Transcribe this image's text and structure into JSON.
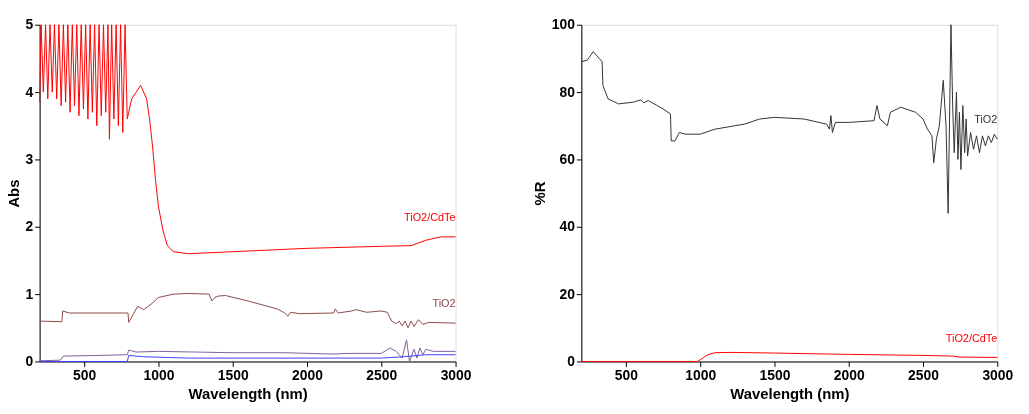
{
  "chart_data": [
    {
      "type": "line",
      "xlabel": "Wavelength (nm)",
      "ylabel": "Abs",
      "xlim": [
        200,
        3000
      ],
      "ylim": [
        0,
        5
      ],
      "xticks": [
        500,
        1000,
        1500,
        2000,
        2500,
        3000
      ],
      "yticks": [
        0,
        1,
        2,
        3,
        4,
        5
      ],
      "grid": false,
      "series": [
        {
          "name": "TiO2/CdTe",
          "color": "#ff0000",
          "x": [
            200,
            210,
            225,
            240,
            255,
            270,
            285,
            300,
            315,
            330,
            345,
            360,
            375,
            390,
            405,
            420,
            435,
            450,
            465,
            480,
            495,
            510,
            525,
            540,
            555,
            570,
            585,
            600,
            615,
            630,
            645,
            660,
            670,
            685,
            700,
            715,
            730,
            745,
            760,
            775,
            790,
            800,
            820,
            850,
            880,
            900,
            920,
            940,
            960,
            980,
            1000,
            1030,
            1060,
            1100,
            1200,
            1500,
            2000,
            2500,
            2700,
            2800,
            2900,
            3000
          ],
          "values": [
            3.85,
            5,
            4.0,
            5,
            3.9,
            5,
            4.0,
            5,
            3.9,
            5,
            3.8,
            5,
            3.85,
            5,
            3.7,
            5,
            3.8,
            5,
            3.65,
            5,
            3.75,
            5,
            3.6,
            5,
            3.7,
            5,
            3.5,
            5,
            3.65,
            5,
            3.7,
            5,
            3.3,
            5,
            3.6,
            5,
            3.5,
            5,
            3.4,
            5,
            3.6,
            3.7,
            3.9,
            4.0,
            4.1,
            4.0,
            3.9,
            3.6,
            3.2,
            2.7,
            2.3,
            1.95,
            1.72,
            1.63,
            1.6,
            1.63,
            1.68,
            1.71,
            1.72,
            1.8,
            1.85,
            1.85
          ]
        },
        {
          "name": "TiO2",
          "color": "#8b4a4a",
          "x": [
            200,
            350,
            355,
            400,
            600,
            795,
            800,
            830,
            860,
            900,
            950,
            1000,
            1100,
            1200,
            1340,
            1360,
            1380,
            1400,
            1450,
            1600,
            1800,
            1850,
            1870,
            1890,
            1950,
            2180,
            2190,
            2210,
            2300,
            2330,
            2400,
            2500,
            2540,
            2570,
            2600,
            2620,
            2640,
            2660,
            2680,
            2700,
            2720,
            2750,
            2780,
            2820,
            3000
          ],
          "values": [
            0.6,
            0.59,
            0.75,
            0.72,
            0.72,
            0.72,
            0.58,
            0.7,
            0.82,
            0.77,
            0.85,
            0.95,
            1.0,
            1.01,
            1.0,
            0.9,
            0.95,
            0.97,
            0.98,
            0.9,
            0.78,
            0.72,
            0.67,
            0.73,
            0.71,
            0.72,
            0.78,
            0.72,
            0.75,
            0.77,
            0.73,
            0.75,
            0.73,
            0.6,
            0.56,
            0.6,
            0.53,
            0.6,
            0.5,
            0.6,
            0.52,
            0.62,
            0.55,
            0.58,
            0.57
          ]
        },
        {
          "color": "#8060a0",
          "x": [
            200,
            340,
            360,
            600,
            790,
            800,
            850,
            1000,
            1500,
            1850,
            2180,
            2270,
            2500,
            2560,
            2600,
            2640,
            2670,
            2690,
            2720,
            2740,
            2760,
            2780,
            2800,
            2850,
            3000
          ],
          "values": [
            0.01,
            0.02,
            0.08,
            0.09,
            0.1,
            0.17,
            0.14,
            0.15,
            0.13,
            0.13,
            0.11,
            0.12,
            0.12,
            0.2,
            0.15,
            0.05,
            0.32,
            0.0,
            0.18,
            0.05,
            0.2,
            0.1,
            0.18,
            0.15,
            0.15
          ]
        },
        {
          "color": "#4040ff",
          "x": [
            200,
            790,
            800,
            900,
            1200,
            2000,
            2500,
            2650,
            2800,
            3000
          ],
          "values": [
            0.0,
            0.0,
            0.09,
            0.07,
            0.05,
            0.05,
            0.05,
            0.07,
            0.1,
            0.1
          ]
        }
      ]
    },
    {
      "type": "line",
      "xlabel": "Wavelength (nm)",
      "ylabel": "%R",
      "xlim": [
        200,
        3000
      ],
      "ylim": [
        0,
        100
      ],
      "xticks": [
        500,
        1000,
        1500,
        2000,
        2500,
        3000
      ],
      "yticks": [
        0,
        20,
        40,
        60,
        80,
        100
      ],
      "grid": false,
      "series": [
        {
          "name": "TiO2",
          "color": "#333333",
          "x": [
            200,
            240,
            280,
            320,
            340,
            345,
            380,
            450,
            550,
            600,
            620,
            650,
            750,
            800,
            805,
            830,
            860,
            900,
            1000,
            1100,
            1300,
            1400,
            1500,
            1700,
            1850,
            1870,
            1880,
            1890,
            1910,
            2000,
            2170,
            2190,
            2210,
            2260,
            2280,
            2350,
            2450,
            2500,
            2530,
            2560,
            2572,
            2590,
            2610,
            2636,
            2655,
            2669,
            2688,
            2700,
            2710,
            2725,
            2735,
            2745,
            2755,
            2768,
            2780,
            2790,
            2800,
            2820,
            2840,
            2860,
            2880,
            2900,
            2920,
            2940,
            2960,
            2980,
            3000
          ],
          "values": [
            89,
            89.5,
            92,
            90,
            89,
            82,
            78,
            76.5,
            77,
            77.7,
            76.8,
            77.5,
            75,
            73.5,
            65.5,
            65.5,
            68,
            67.5,
            67.5,
            69,
            70.5,
            72,
            72.5,
            72,
            70.5,
            69,
            73,
            68,
            71,
            71,
            71.5,
            76,
            72,
            70,
            74,
            75.5,
            74,
            72,
            69,
            67,
            59,
            66,
            70,
            83.5,
            70,
            44,
            100,
            75,
            62,
            80,
            60,
            74,
            57,
            76,
            62,
            72,
            61,
            68,
            63,
            67,
            62,
            67,
            64,
            67,
            65,
            67.5,
            66
          ]
        },
        {
          "name": "TiO2/CdTe",
          "color": "#ff0000",
          "x": [
            200,
            980,
            1000,
            1050,
            1100,
            1200,
            1500,
            2000,
            2500,
            2700,
            2750,
            3000
          ],
          "values": [
            0,
            0,
            0.5,
            2,
            2.6,
            2.7,
            2.5,
            2.1,
            1.8,
            1.6,
            1.3,
            1.2
          ]
        }
      ]
    }
  ]
}
